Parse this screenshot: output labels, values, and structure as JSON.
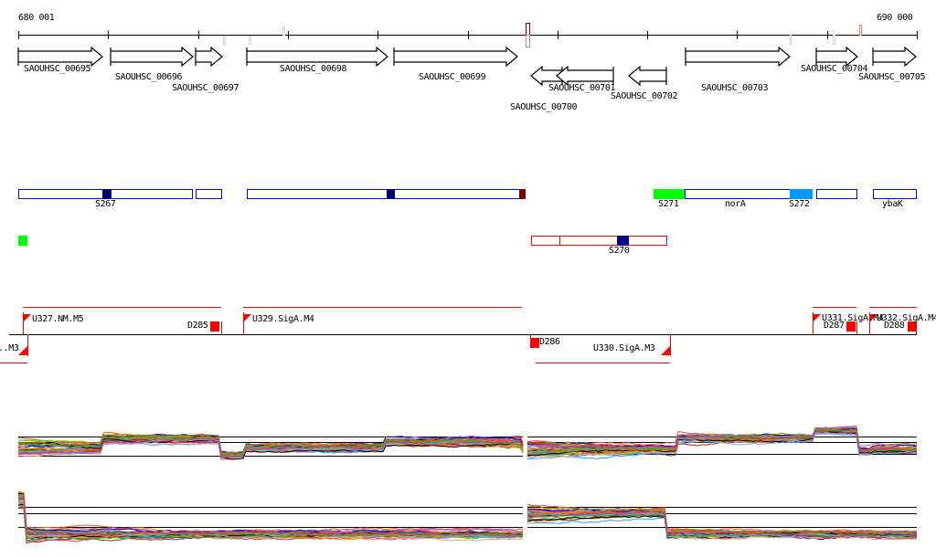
{
  "ruler": {
    "start_label": "680 001",
    "end_label": "690 000"
  },
  "genes": [
    {
      "name": "SAOUHSC_00695",
      "strand": "+"
    },
    {
      "name": "SAOUHSC_00696",
      "strand": "+"
    },
    {
      "name": "SAOUHSC_00697",
      "strand": "+"
    },
    {
      "name": "SAOUHSC_00698",
      "strand": "+"
    },
    {
      "name": "SAOUHSC_00699",
      "strand": "+"
    },
    {
      "name": "SAOUHSC_00700",
      "strand": "-"
    },
    {
      "name": "SAOUHSC_00701",
      "strand": "-"
    },
    {
      "name": "SAOUHSC_00702",
      "strand": "-"
    },
    {
      "name": "SAOUHSC_00703",
      "strand": "+"
    },
    {
      "name": "SAOUHSC_00704",
      "strand": "+"
    },
    {
      "name": "SAOUHSC_00705",
      "strand": "+"
    }
  ],
  "features": {
    "s267": "S267",
    "s271": "S271",
    "nora": "norA",
    "s272": "S272",
    "ybak": "ybaK",
    "s270": "S270"
  },
  "transcripts": {
    "u327": "U327.NM.M5",
    "d285": "D285",
    "u329": "U329.SigA.M4",
    "u331": "U331.SigA.M4",
    "d287": "D287",
    "u332": "U332.SigA.M4",
    "d288": "D288",
    "d286": "D286",
    "u330": "U330.SigA.M3",
    "m3_partial": "..M3"
  },
  "colors": {
    "outline_blue": "#0000ff",
    "dark_blue": "#000080",
    "dark_red": "#800000",
    "green": "#00ff00",
    "light_blue": "#0099ff",
    "red": "#ff0000",
    "trace_palette": [
      "#e0602a",
      "#8a8a00",
      "#33aa33",
      "#cc3388",
      "#3399ff",
      "#aa66cc",
      "#ff3333",
      "#66cc00",
      "#993300",
      "#ff9966",
      "#0000aa",
      "#996699",
      "#cc9900",
      "#000000",
      "#66aaff"
    ]
  }
}
